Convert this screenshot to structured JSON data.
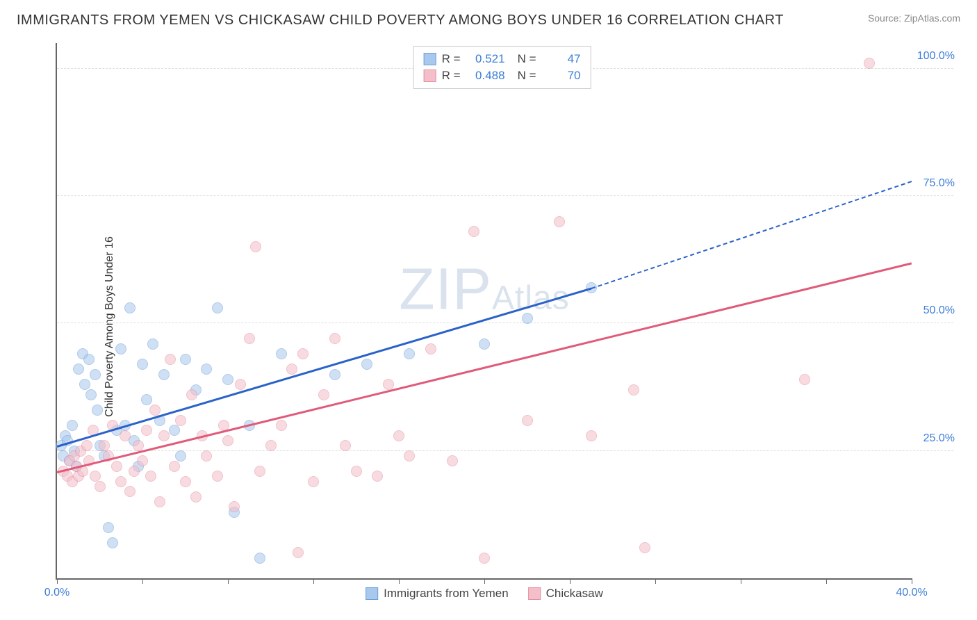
{
  "title": "IMMIGRANTS FROM YEMEN VS CHICKASAW CHILD POVERTY AMONG BOYS UNDER 16 CORRELATION CHART",
  "source": "Source: ZipAtlas.com",
  "ylabel": "Child Poverty Among Boys Under 16",
  "watermark_prefix": "ZIP",
  "watermark_suffix": "Atlas",
  "chart": {
    "type": "scatter",
    "background_color": "#ffffff",
    "grid_color": "#dddddd",
    "axis_color": "#666666",
    "tick_label_color": "#3b7dd8",
    "xlim": [
      0,
      40
    ],
    "ylim": [
      0,
      105
    ],
    "xticks": [
      0,
      4,
      8,
      12,
      16,
      20,
      24,
      28,
      32,
      36,
      40
    ],
    "xtick_labels": {
      "0": "0.0%",
      "40": "40.0%"
    },
    "yticks": [
      25,
      50,
      75,
      100
    ],
    "ytick_labels": {
      "25": "25.0%",
      "50": "50.0%",
      "75": "75.0%",
      "100": "100.0%"
    },
    "marker_radius": 8,
    "marker_opacity": 0.55,
    "series": [
      {
        "name": "Immigrants from Yemen",
        "color_fill": "#a9c8ee",
        "color_stroke": "#6f9fd8",
        "trend_color": "#2a62c9",
        "r": "0.521",
        "n": "47",
        "trend": {
          "x1": 0,
          "y1": 26,
          "x2_solid": 25,
          "y2_solid": 57,
          "x2_dash": 40,
          "y2_dash": 78
        },
        "points": [
          [
            0.2,
            26
          ],
          [
            0.3,
            24
          ],
          [
            0.4,
            28
          ],
          [
            0.5,
            27
          ],
          [
            0.6,
            23
          ],
          [
            0.7,
            30
          ],
          [
            0.8,
            25
          ],
          [
            0.9,
            22
          ],
          [
            1.0,
            41
          ],
          [
            1.2,
            44
          ],
          [
            1.3,
            38
          ],
          [
            1.5,
            43
          ],
          [
            1.6,
            36
          ],
          [
            1.8,
            40
          ],
          [
            1.9,
            33
          ],
          [
            2.0,
            26
          ],
          [
            2.2,
            24
          ],
          [
            2.4,
            10
          ],
          [
            2.6,
            7
          ],
          [
            2.8,
            29
          ],
          [
            3.0,
            45
          ],
          [
            3.2,
            30
          ],
          [
            3.4,
            53
          ],
          [
            3.6,
            27
          ],
          [
            3.8,
            22
          ],
          [
            4.0,
            42
          ],
          [
            4.2,
            35
          ],
          [
            4.5,
            46
          ],
          [
            4.8,
            31
          ],
          [
            5.0,
            40
          ],
          [
            5.5,
            29
          ],
          [
            5.8,
            24
          ],
          [
            6.0,
            43
          ],
          [
            6.5,
            37
          ],
          [
            7.0,
            41
          ],
          [
            7.5,
            53
          ],
          [
            8.0,
            39
          ],
          [
            8.3,
            13
          ],
          [
            9.0,
            30
          ],
          [
            9.5,
            4
          ],
          [
            10.5,
            44
          ],
          [
            13.0,
            40
          ],
          [
            14.5,
            42
          ],
          [
            16.5,
            44
          ],
          [
            20.0,
            46
          ],
          [
            22.0,
            51
          ],
          [
            25.0,
            57
          ]
        ]
      },
      {
        "name": "Chickasaw",
        "color_fill": "#f4bfca",
        "color_stroke": "#e58fa0",
        "trend_color": "#e05a7a",
        "r": "0.488",
        "n": "70",
        "trend": {
          "x1": 0,
          "y1": 21,
          "x2_solid": 40,
          "y2_solid": 62
        },
        "points": [
          [
            0.3,
            21
          ],
          [
            0.5,
            20
          ],
          [
            0.6,
            23
          ],
          [
            0.7,
            19
          ],
          [
            0.8,
            24
          ],
          [
            0.9,
            22
          ],
          [
            1.0,
            20
          ],
          [
            1.1,
            25
          ],
          [
            1.2,
            21
          ],
          [
            1.4,
            26
          ],
          [
            1.5,
            23
          ],
          [
            1.7,
            29
          ],
          [
            1.8,
            20
          ],
          [
            2.0,
            18
          ],
          [
            2.2,
            26
          ],
          [
            2.4,
            24
          ],
          [
            2.6,
            30
          ],
          [
            2.8,
            22
          ],
          [
            3.0,
            19
          ],
          [
            3.2,
            28
          ],
          [
            3.4,
            17
          ],
          [
            3.6,
            21
          ],
          [
            3.8,
            26
          ],
          [
            4.0,
            23
          ],
          [
            4.2,
            29
          ],
          [
            4.4,
            20
          ],
          [
            4.6,
            33
          ],
          [
            4.8,
            15
          ],
          [
            5.0,
            28
          ],
          [
            5.3,
            43
          ],
          [
            5.5,
            22
          ],
          [
            5.8,
            31
          ],
          [
            6.0,
            19
          ],
          [
            6.3,
            36
          ],
          [
            6.5,
            16
          ],
          [
            6.8,
            28
          ],
          [
            7.0,
            24
          ],
          [
            7.5,
            20
          ],
          [
            7.8,
            30
          ],
          [
            8.0,
            27
          ],
          [
            8.3,
            14
          ],
          [
            8.6,
            38
          ],
          [
            9.0,
            47
          ],
          [
            9.3,
            65
          ],
          [
            9.5,
            21
          ],
          [
            10.0,
            26
          ],
          [
            10.5,
            30
          ],
          [
            11.0,
            41
          ],
          [
            11.3,
            5
          ],
          [
            11.5,
            44
          ],
          [
            12.0,
            19
          ],
          [
            12.5,
            36
          ],
          [
            13.0,
            47
          ],
          [
            13.5,
            26
          ],
          [
            14.0,
            21
          ],
          [
            15.0,
            20
          ],
          [
            15.5,
            38
          ],
          [
            16.0,
            28
          ],
          [
            16.5,
            24
          ],
          [
            17.5,
            45
          ],
          [
            18.5,
            23
          ],
          [
            19.5,
            68
          ],
          [
            20.0,
            4
          ],
          [
            22.0,
            31
          ],
          [
            23.5,
            70
          ],
          [
            25.0,
            28
          ],
          [
            27.0,
            37
          ],
          [
            27.5,
            6
          ],
          [
            35.0,
            39
          ],
          [
            38.0,
            101
          ]
        ]
      }
    ],
    "legend_top": {
      "r_label": "R  =",
      "n_label": "N  ="
    },
    "legend_bottom_labels": [
      "Immigrants from Yemen",
      "Chickasaw"
    ]
  }
}
